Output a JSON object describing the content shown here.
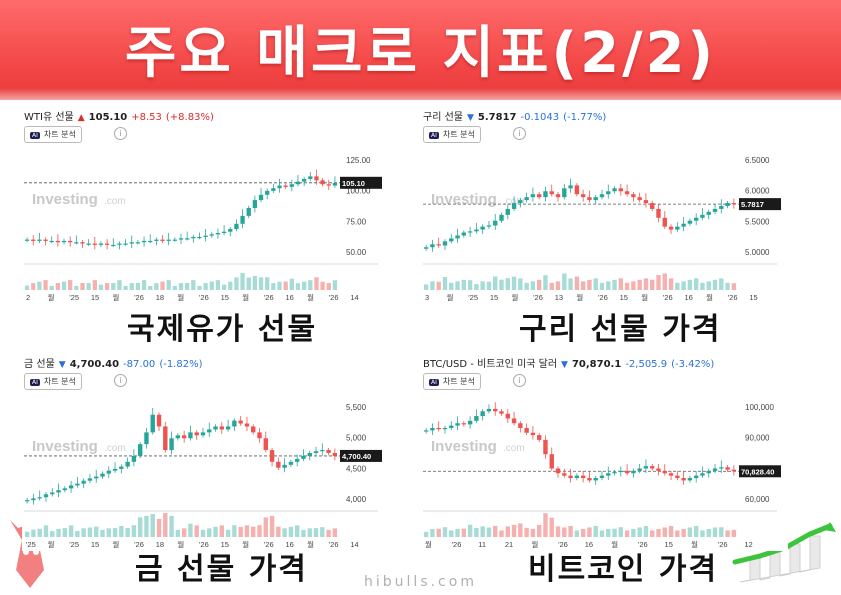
{
  "title": "주요 매크로 지표(2/2)",
  "footer": "hibulls.com",
  "ai_button_label": "차트 분석",
  "ai_badge": "AI",
  "info_glyph": "i",
  "watermark": "Investing",
  "watermark_suffix": ".com",
  "colors": {
    "banner": "#f24545",
    "up": "#dd2b2b",
    "down": "#2a6fdb",
    "candle_up": "#26a69a",
    "candle_down": "#ef5350",
    "accent_green": "#3cc43c"
  },
  "panels": [
    {
      "id": "wti",
      "instrument": "WTI유 선물",
      "direction": "up",
      "price": "105.10",
      "change": "+8.53",
      "change_pct": "(+8.83%)",
      "caption": "국제유가 선물",
      "axis_labels": [
        "125.00",
        "100.00",
        "75.00",
        "50.00"
      ],
      "price_tag": "105.10",
      "x_labels": [
        "2",
        "월",
        "'25",
        "15",
        "월",
        "'26",
        "18",
        "월",
        "'26",
        "15",
        "월",
        "'26",
        "16",
        "월",
        "'26",
        "14"
      ],
      "chart_data": {
        "type": "candlestick",
        "ylim": [
          45,
          130
        ],
        "close": [
          62,
          61,
          62,
          61,
          61,
          60,
          61,
          60,
          60,
          59,
          59,
          58,
          59,
          58,
          58,
          59,
          59,
          60,
          60,
          61,
          61,
          62,
          61,
          62,
          62,
          63,
          63,
          64,
          64,
          65,
          66,
          67,
          68,
          70,
          74,
          80,
          86,
          92,
          96,
          99,
          101,
          103,
          102,
          104,
          106,
          108,
          110,
          107,
          104,
          103,
          105
        ],
        "reference_price": 105.1
      }
    },
    {
      "id": "copper",
      "instrument": "구리 선물",
      "direction": "down",
      "price": "5.7817",
      "change": "-0.1043",
      "change_pct": "(-1.77%)",
      "caption": "구리 선물 가격",
      "axis_labels": [
        "6.5000",
        "6.0000",
        "5.5000",
        "5.0000"
      ],
      "price_tag": "5.7817",
      "x_labels": [
        "3",
        "월",
        "'25",
        "15",
        "월",
        "'26",
        "13",
        "월",
        "'26",
        "15",
        "월",
        "'26",
        "16",
        "월",
        "'26",
        "15"
      ],
      "chart_data": {
        "type": "candlestick",
        "ylim": [
          4.8,
          6.7
        ],
        "close": [
          5.05,
          5.1,
          5.08,
          5.15,
          5.2,
          5.25,
          5.3,
          5.32,
          5.35,
          5.4,
          5.42,
          5.5,
          5.6,
          5.7,
          5.8,
          5.85,
          5.9,
          5.95,
          5.9,
          6.0,
          5.95,
          5.9,
          6.05,
          6.1,
          5.95,
          5.9,
          5.85,
          5.9,
          5.95,
          6.0,
          6.05,
          6.0,
          5.95,
          5.9,
          5.85,
          5.8,
          5.7,
          5.55,
          5.4,
          5.35,
          5.4,
          5.45,
          5.5,
          5.55,
          5.6,
          5.65,
          5.7,
          5.75,
          5.8,
          5.78
        ],
        "reference_price": 5.7817
      }
    },
    {
      "id": "gold",
      "instrument": "금 선물",
      "direction": "down",
      "price": "4,700.40",
      "change": "-87.00",
      "change_pct": "(-1.82%)",
      "caption": "금 선물 가격",
      "axis_labels": [
        "5,500",
        "5,000",
        "4,500",
        "4,000"
      ],
      "price_tag": "4,700.40",
      "x_labels": [
        "'25",
        "월",
        "'25",
        "15",
        "월",
        "'26",
        "18",
        "월",
        "'26",
        "15",
        "월",
        "'26",
        "16",
        "월",
        "'26",
        "14"
      ],
      "chart_data": {
        "type": "candlestick",
        "ylim": [
          3800,
          5700
        ],
        "close": [
          3950,
          3980,
          4000,
          4050,
          4080,
          4120,
          4150,
          4200,
          4230,
          4280,
          4320,
          4350,
          4400,
          4450,
          4480,
          4520,
          4600,
          4700,
          4900,
          5100,
          5400,
          5200,
          4800,
          5000,
          5050,
          5000,
          5100,
          5050,
          5100,
          5150,
          5200,
          5150,
          5200,
          5300,
          5250,
          5200,
          5100,
          5000,
          4800,
          4600,
          4500,
          4550,
          4600,
          4650,
          4700,
          4750,
          4780,
          4800,
          4750,
          4700
        ],
        "reference_price": 4700.4
      }
    },
    {
      "id": "btc",
      "instrument": "BTC/USD - 비트코인 미국 달러",
      "direction": "down",
      "price": "70,870.1",
      "change": "-2,505.9",
      "change_pct": "(-3.42%)",
      "caption": "비트코인 가격",
      "axis_labels": [
        "100,000",
        "90,000",
        "80,000",
        "60,000"
      ],
      "price_tag": "70,828.40",
      "x_labels": [
        "월",
        "'26",
        "11",
        "21",
        "월",
        "'26",
        "16",
        "월",
        "'26",
        "15",
        "월",
        "'26",
        "12"
      ],
      "chart_data": {
        "type": "candlestick",
        "ylim": [
          55000,
          102000
        ],
        "close": [
          88000,
          89000,
          88500,
          89000,
          90000,
          91000,
          90500,
          92000,
          94000,
          96000,
          97000,
          96000,
          95000,
          93000,
          91000,
          89000,
          87000,
          86000,
          84000,
          78000,
          72000,
          70000,
          69000,
          68000,
          69000,
          68000,
          67000,
          68000,
          69000,
          70000,
          70500,
          71000,
          70000,
          71000,
          72000,
          73000,
          72000,
          71000,
          70000,
          69000,
          68000,
          67000,
          68000,
          69000,
          70000,
          71000,
          72000,
          72500,
          71500,
          70870
        ],
        "reference_price": 70828.4
      }
    }
  ]
}
